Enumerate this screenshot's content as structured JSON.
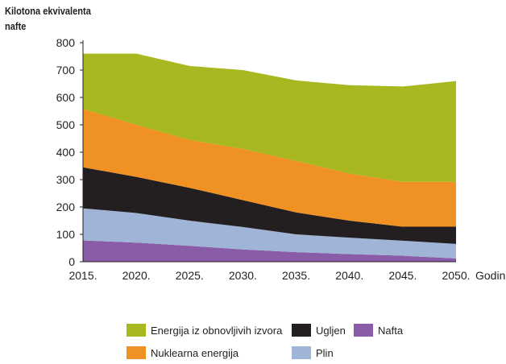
{
  "chart_data": {
    "type": "area",
    "stacked": true,
    "ylabel": "Kilotona ekvivalenta nafte",
    "xlabel": "Godina",
    "x": [
      "2015.",
      "2020.",
      "2025.",
      "2030.",
      "2035.",
      "2040.",
      "2045.",
      "2050."
    ],
    "ylim": [
      0,
      800
    ],
    "yticks": [
      0,
      100,
      200,
      300,
      400,
      500,
      600,
      700,
      800
    ],
    "grid": false,
    "legend_position": "bottom",
    "series": [
      {
        "name": "Nafta",
        "color": "#8a5ba6",
        "values": [
          78,
          70,
          58,
          45,
          35,
          28,
          22,
          12
        ]
      },
      {
        "name": "Plin",
        "color": "#9fb4d6",
        "values": [
          117,
          108,
          92,
          82,
          65,
          60,
          55,
          53
        ]
      },
      {
        "name": "Ugljen",
        "color": "#231f20",
        "values": [
          150,
          132,
          120,
          98,
          80,
          62,
          51,
          63
        ]
      },
      {
        "name": "Nuklearna energija",
        "color": "#f09223",
        "values": [
          213,
          190,
          175,
          187,
          188,
          172,
          164,
          164
        ]
      },
      {
        "name": "Energija iz obnovljivih izvora",
        "color": "#a8b820",
        "values": [
          202,
          260,
          270,
          288,
          294,
          323,
          348,
          368
        ]
      }
    ]
  }
}
